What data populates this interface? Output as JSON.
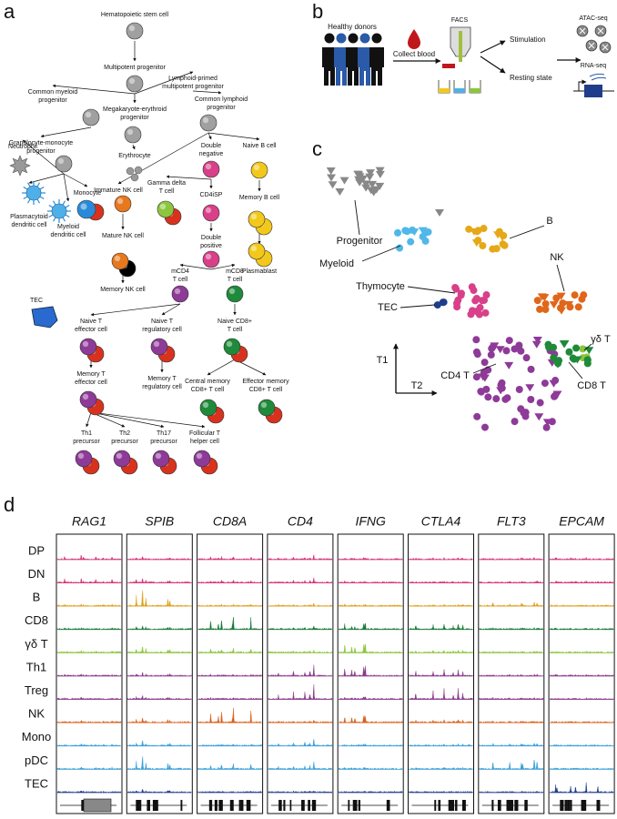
{
  "panel_a": {
    "label": "a",
    "nodes": [
      {
        "label": [
          "Hematopoietic stem cell"
        ]
      },
      {
        "label": [
          "Multipotent progenitor"
        ]
      },
      {
        "label": [
          "Common myeloid",
          "progenitor"
        ]
      },
      {
        "label": [
          "Lymphoid-primed",
          "multipotent progenitor"
        ]
      },
      {
        "label": [
          "Megakaryote-erythroid",
          "progenitor"
        ]
      },
      {
        "label": [
          "Common lymphoid",
          "progenitor"
        ]
      },
      {
        "label": [
          "Granulocyte-monocyte",
          "progenitor"
        ]
      },
      {
        "label": [
          "Erythrocyte"
        ]
      },
      {
        "label": [
          "Neutrophil"
        ]
      },
      {
        "label": [
          "Monocyte"
        ]
      },
      {
        "label": [
          "Plasmacytoid",
          "dendritic cell"
        ]
      },
      {
        "label": [
          "Myeloid",
          "dendritic cell"
        ]
      },
      {
        "label": [
          "Immature NK cell"
        ]
      },
      {
        "label": [
          "Mature NK cell"
        ]
      },
      {
        "label": [
          "Memory NK cell"
        ]
      },
      {
        "label": [
          "Double",
          "negative"
        ]
      },
      {
        "label": [
          "Naive B cell"
        ]
      },
      {
        "label": [
          "Gamma delta",
          "T cell"
        ]
      },
      {
        "label": [
          "CD4iSP"
        ]
      },
      {
        "label": [
          "Memory B cell"
        ]
      },
      {
        "label": [
          "Double",
          "positive"
        ]
      },
      {
        "label": [
          "Plasmablast"
        ]
      },
      {
        "label": [
          "mCD4",
          "T cell"
        ]
      },
      {
        "label": [
          "mCD8",
          "T cell"
        ]
      },
      {
        "label": [
          "Naive T",
          "effector cell"
        ]
      },
      {
        "label": [
          "Naive T",
          "regulatory cell"
        ]
      },
      {
        "label": [
          "Naive CD8+",
          "T cell"
        ]
      },
      {
        "label": [
          "Memory T",
          "effector cell"
        ]
      },
      {
        "label": [
          "Memory T",
          "regulatory cell"
        ]
      },
      {
        "label": [
          "Central memory",
          "CD8+ T cell"
        ]
      },
      {
        "label": [
          "Effector memory",
          "CD8+ T cell"
        ]
      },
      {
        "label": [
          "Th1",
          "precursor"
        ]
      },
      {
        "label": [
          "Th2",
          "precursor"
        ]
      },
      {
        "label": [
          "Th17",
          "precursor"
        ]
      },
      {
        "label": [
          "Follicular T",
          "helper cell"
        ]
      }
    ],
    "tec": "TEC"
  },
  "panel_b": {
    "label": "b",
    "steps": [
      "Healthy donors",
      "Collect blood",
      "FACS",
      "Stimulation",
      "Resting state",
      "ATAC-seq",
      "RNA-seq"
    ]
  },
  "panel_c": {
    "label": "c",
    "clusters": [
      "Progenitor",
      "Myeloid",
      "B",
      "NK",
      "Thymocyte",
      "TEC",
      "γδ T",
      "CD4 T",
      "CD8 T"
    ],
    "axes": [
      "T1",
      "T2"
    ]
  },
  "panel_d": {
    "label": "d",
    "genes": [
      "RAG1",
      "SPIB",
      "CD8A",
      "CD4",
      "IFNG",
      "CTLA4",
      "FLT3",
      "EPCAM"
    ],
    "rows": [
      "DP",
      "DN",
      "B",
      "CD8",
      "γδ T",
      "Th1",
      "Treg",
      "NK",
      "Mono",
      "pDC",
      "TEC"
    ]
  }
}
